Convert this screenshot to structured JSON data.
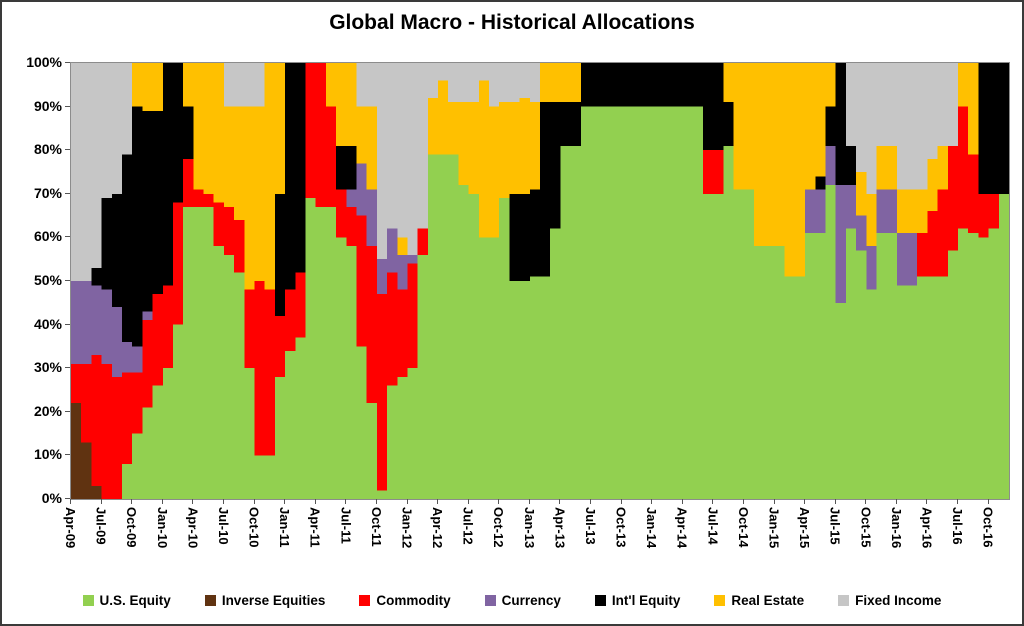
{
  "title": "Global Macro - Historical Allocations",
  "chart_data": {
    "type": "area",
    "stacked": true,
    "unit": "percent",
    "title": "Global Macro - Historical Allocations",
    "xlabel": "",
    "ylabel": "",
    "ylim": [
      0,
      100
    ],
    "grid": false,
    "legend_position": "bottom",
    "y_tick_labels": [
      "100%",
      "90%",
      "80%",
      "70%",
      "60%",
      "50%",
      "40%",
      "30%",
      "20%",
      "10%",
      "0%"
    ],
    "x_tick_every": 3,
    "x_tick_labels": [
      "Apr-09",
      "Jul-09",
      "Oct-09",
      "Jan-10",
      "Apr-10",
      "Jul-10",
      "Oct-10",
      "Jan-11",
      "Apr-11",
      "Jul-11",
      "Oct-11",
      "Jan-12",
      "Apr-12",
      "Jul-12",
      "Oct-12",
      "Jan-13",
      "Apr-13",
      "Jul-13",
      "Oct-13",
      "Jan-14",
      "Apr-14",
      "Jul-14",
      "Oct-14",
      "Jan-15",
      "Apr-15",
      "Jul-15",
      "Oct-15",
      "Jan-16",
      "Apr-16",
      "Jul-16",
      "Oct-16"
    ],
    "x": [
      "Apr-09",
      "May-09",
      "Jun-09",
      "Jul-09",
      "Aug-09",
      "Sep-09",
      "Oct-09",
      "Nov-09",
      "Dec-09",
      "Jan-10",
      "Feb-10",
      "Mar-10",
      "Apr-10",
      "May-10",
      "Jun-10",
      "Jul-10",
      "Aug-10",
      "Sep-10",
      "Oct-10",
      "Nov-10",
      "Dec-10",
      "Jan-11",
      "Feb-11",
      "Mar-11",
      "Apr-11",
      "May-11",
      "Jun-11",
      "Jul-11",
      "Aug-11",
      "Sep-11",
      "Oct-11",
      "Nov-11",
      "Dec-11",
      "Jan-12",
      "Feb-12",
      "Mar-12",
      "Apr-12",
      "May-12",
      "Jun-12",
      "Jul-12",
      "Aug-12",
      "Sep-12",
      "Oct-12",
      "Nov-12",
      "Dec-12",
      "Jan-13",
      "Feb-13",
      "Mar-13",
      "Apr-13",
      "May-13",
      "Jun-13",
      "Jul-13",
      "Aug-13",
      "Sep-13",
      "Oct-13",
      "Nov-13",
      "Dec-13",
      "Jan-14",
      "Feb-14",
      "Mar-14",
      "Apr-14",
      "May-14",
      "Jun-14",
      "Jul-14",
      "Aug-14",
      "Sep-14",
      "Oct-14",
      "Nov-14",
      "Dec-14",
      "Jan-15",
      "Feb-15",
      "Mar-15",
      "Apr-15",
      "May-15",
      "Jun-15",
      "Jul-15",
      "Aug-15",
      "Sep-15",
      "Oct-15",
      "Nov-15",
      "Dec-15",
      "Jan-16",
      "Feb-16",
      "Mar-16",
      "Apr-16",
      "May-16",
      "Jun-16",
      "Jul-16",
      "Aug-16",
      "Sep-16",
      "Oct-16",
      "Nov-16",
      "Dec-16"
    ],
    "series": [
      {
        "name": "U.S. Equity",
        "color": "#92D050",
        "values": [
          0,
          0,
          0,
          0,
          0,
          8,
          15,
          21,
          26,
          30,
          40,
          67,
          67,
          67,
          58,
          56,
          52,
          30,
          10,
          10,
          28,
          34,
          37,
          69,
          67,
          67,
          60,
          58,
          35,
          22,
          2,
          26,
          28,
          30,
          56,
          79,
          79,
          79,
          72,
          70,
          60,
          60,
          69,
          50,
          50,
          51,
          51,
          62,
          81,
          81,
          90,
          90,
          90,
          90,
          90,
          90,
          90,
          90,
          90,
          90,
          90,
          90,
          70,
          70,
          81,
          71,
          71,
          58,
          58,
          58,
          51,
          51,
          61,
          61,
          72,
          45,
          62,
          57,
          48,
          61,
          61,
          49,
          49,
          51,
          51,
          51,
          57,
          62,
          61,
          60,
          62,
          70,
          70
        ]
      },
      {
        "name": "Inverse Equities",
        "color": "#603311",
        "values": [
          22,
          13,
          3,
          0,
          0,
          0,
          0,
          0,
          0,
          0,
          0,
          0,
          0,
          0,
          0,
          0,
          0,
          0,
          0,
          0,
          0,
          0,
          0,
          0,
          0,
          0,
          0,
          0,
          0,
          0,
          0,
          0,
          0,
          0,
          0,
          0,
          0,
          0,
          0,
          0,
          0,
          0,
          0,
          0,
          0,
          0,
          0,
          0,
          0,
          0,
          0,
          0,
          0,
          0,
          0,
          0,
          0,
          0,
          0,
          0,
          0,
          0,
          0,
          0,
          0,
          0,
          0,
          0,
          0,
          0,
          0,
          0,
          0,
          0,
          0,
          0,
          0,
          0,
          0,
          0,
          0,
          0,
          0,
          0,
          0,
          0,
          0,
          0,
          0,
          0,
          0,
          0,
          0
        ]
      },
      {
        "name": "Commodity",
        "color": "#FF0000",
        "values": [
          9,
          18,
          30,
          31,
          28,
          21,
          14,
          20,
          21,
          19,
          28,
          11,
          4,
          3,
          10,
          11,
          12,
          18,
          40,
          38,
          14,
          14,
          15,
          31,
          33,
          23,
          11,
          9,
          30,
          36,
          45,
          26,
          20,
          24,
          6,
          0,
          0,
          0,
          0,
          0,
          0,
          0,
          0,
          0,
          0,
          0,
          0,
          0,
          0,
          0,
          0,
          0,
          0,
          0,
          0,
          0,
          0,
          0,
          0,
          0,
          0,
          0,
          10,
          10,
          0,
          0,
          0,
          0,
          0,
          0,
          0,
          0,
          0,
          0,
          0,
          0,
          0,
          0,
          0,
          0,
          0,
          0,
          0,
          10,
          15,
          20,
          24,
          28,
          18,
          10,
          8,
          0,
          10
        ]
      },
      {
        "name": "Currency",
        "color": "#8064A2",
        "values": [
          19,
          19,
          16,
          17,
          16,
          7,
          6,
          2,
          0,
          0,
          0,
          0,
          0,
          0,
          0,
          0,
          0,
          0,
          0,
          0,
          0,
          0,
          0,
          0,
          0,
          0,
          0,
          4,
          12,
          13,
          8,
          10,
          8,
          2,
          0,
          0,
          0,
          0,
          0,
          0,
          0,
          0,
          0,
          0,
          0,
          0,
          0,
          0,
          0,
          0,
          0,
          0,
          0,
          0,
          0,
          0,
          0,
          0,
          0,
          0,
          0,
          0,
          0,
          0,
          0,
          0,
          0,
          0,
          0,
          0,
          0,
          0,
          10,
          10,
          9,
          27,
          10,
          8,
          10,
          10,
          10,
          12,
          12,
          0,
          0,
          0,
          0,
          0,
          0,
          0,
          0,
          0,
          0
        ]
      },
      {
        "name": "Int'l Equity",
        "color": "#000000",
        "values": [
          0,
          0,
          4,
          21,
          26,
          43,
          55,
          46,
          42,
          51,
          32,
          12,
          0,
          0,
          0,
          0,
          0,
          0,
          0,
          0,
          28,
          52,
          48,
          0,
          0,
          0,
          10,
          10,
          0,
          0,
          0,
          0,
          0,
          0,
          0,
          0,
          0,
          0,
          0,
          0,
          0,
          0,
          0,
          20,
          20,
          20,
          40,
          29,
          10,
          10,
          10,
          10,
          10,
          10,
          10,
          10,
          10,
          10,
          10,
          10,
          10,
          10,
          20,
          20,
          10,
          0,
          0,
          0,
          0,
          0,
          0,
          0,
          0,
          3,
          9,
          28,
          9,
          0,
          0,
          0,
          0,
          0,
          0,
          0,
          0,
          0,
          0,
          0,
          0,
          30,
          30,
          30,
          20
        ]
      },
      {
        "name": "Real Estate",
        "color": "#FFC000",
        "values": [
          0,
          0,
          0,
          0,
          0,
          0,
          10,
          11,
          11,
          0,
          0,
          10,
          29,
          30,
          32,
          23,
          26,
          42,
          40,
          52,
          30,
          0,
          0,
          0,
          0,
          10,
          19,
          19,
          13,
          19,
          0,
          0,
          4,
          0,
          0,
          13,
          17,
          12,
          19,
          21,
          36,
          30,
          22,
          21,
          22,
          20,
          9,
          9,
          9,
          9,
          0,
          0,
          0,
          0,
          0,
          0,
          0,
          0,
          0,
          0,
          0,
          0,
          0,
          0,
          9,
          29,
          29,
          42,
          42,
          42,
          49,
          49,
          29,
          26,
          10,
          0,
          0,
          10,
          12,
          10,
          10,
          10,
          10,
          10,
          12,
          10,
          0,
          10,
          21,
          0,
          0,
          0,
          0
        ]
      },
      {
        "name": "Fixed Income",
        "color": "#C6C6C6",
        "values": [
          50,
          50,
          47,
          31,
          30,
          21,
          0,
          0,
          0,
          0,
          0,
          0,
          0,
          0,
          0,
          10,
          10,
          10,
          10,
          0,
          0,
          0,
          0,
          0,
          0,
          0,
          0,
          0,
          10,
          10,
          45,
          38,
          40,
          44,
          38,
          8,
          4,
          9,
          9,
          9,
          4,
          10,
          9,
          9,
          8,
          9,
          0,
          0,
          0,
          0,
          0,
          0,
          0,
          0,
          0,
          0,
          0,
          0,
          0,
          0,
          0,
          0,
          0,
          0,
          0,
          0,
          0,
          0,
          0,
          0,
          0,
          0,
          0,
          0,
          0,
          0,
          19,
          25,
          30,
          19,
          19,
          29,
          29,
          29,
          22,
          19,
          19,
          0,
          0,
          0,
          0,
          0,
          0
        ]
      }
    ]
  }
}
